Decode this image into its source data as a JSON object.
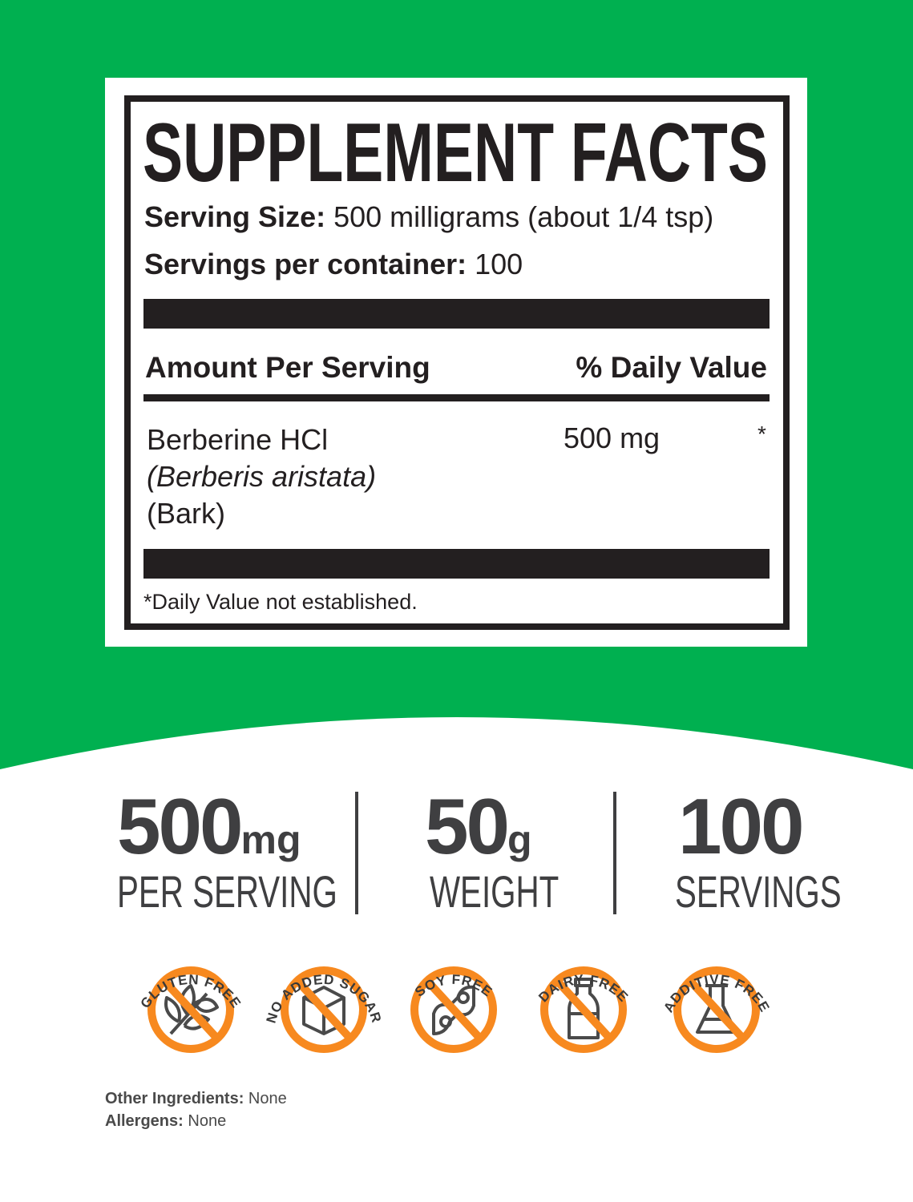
{
  "colors": {
    "background": "#00b050",
    "icon_ring": "#f7891f",
    "icon_glyph": "#4a4a4a",
    "text": "#231f20",
    "stat_text": "#3f3f41"
  },
  "facts": {
    "title": "SUPPLEMENT FACTS",
    "serving_size_label": "Serving Size:",
    "serving_size_value": "500 milligrams (about 1/4 tsp)",
    "servings_label": "Servings per container:",
    "servings_value": "100",
    "col_amount": "Amount Per Serving",
    "col_dv": "% Daily Value",
    "ingredient": {
      "name": "Berberine HCl",
      "latin": "(Berberis aristata)",
      "part": "(Bark)",
      "amount": "500 mg",
      "dv": "*"
    },
    "footnote": "*Daily Value not established."
  },
  "stats": [
    {
      "number": "500",
      "unit": "mg",
      "label": "PER SERVING"
    },
    {
      "number": "50",
      "unit": "g",
      "label": "WEIGHT"
    },
    {
      "number": "100",
      "unit": "",
      "label": "SERVINGS"
    }
  ],
  "badges": [
    {
      "label": "GLUTEN FREE",
      "icon": "wheat-icon"
    },
    {
      "label": "NO ADDED SUGAR",
      "icon": "sugar-cube-icon"
    },
    {
      "label": "SOY FREE",
      "icon": "soybean-icon"
    },
    {
      "label": "DAIRY FREE",
      "icon": "milk-bottle-icon"
    },
    {
      "label": "ADDITIVE FREE",
      "icon": "flask-icon"
    }
  ],
  "footer": {
    "other_label": "Other Ingredients:",
    "other_value": "None",
    "allergens_label": "Allergens:",
    "allergens_value": "None"
  }
}
